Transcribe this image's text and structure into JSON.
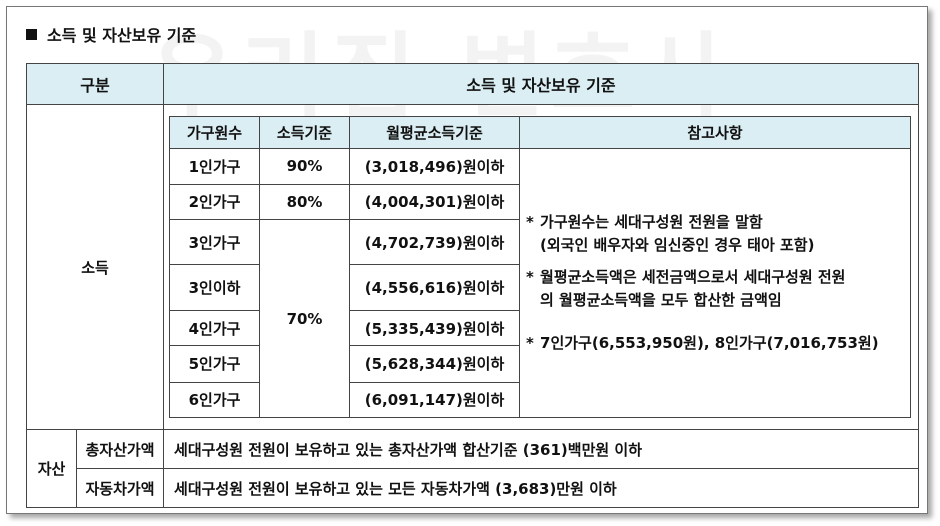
{
  "watermark": "우리집 변호사",
  "heading": "소득 및 자산보유 기준",
  "table": {
    "header": {
      "col1": "구분",
      "col2": "소득 및 자산보유 기준"
    },
    "income": {
      "label": "소득",
      "columns": [
        "가구원수",
        "소득기준",
        "월평균소득기준",
        "참고사항"
      ],
      "rows": [
        {
          "household": "1인가구",
          "rate": "90%",
          "amount": "(3,018,496)원이하"
        },
        {
          "household": "2인가구",
          "rate": "80%",
          "amount": "(4,004,301)원이하"
        },
        {
          "household": "3인가구",
          "rate": "70%",
          "amount": "(4,702,739)원이하"
        },
        {
          "household": "3인이하",
          "amount": "(4,556,616)원이하"
        },
        {
          "household": "4인가구",
          "amount": "(5,335,439)원이하"
        },
        {
          "household": "5인가구",
          "amount": "(5,628,344)원이하"
        },
        {
          "household": "6인가구",
          "amount": "(6,091,147)원이하"
        }
      ],
      "notes": {
        "star": "*",
        "n1a": "가구원수는 세대구성원 전원을 말함",
        "n1b": "(외국인 배우자와 임신중인 경우 태아 포함)",
        "n2a": "월평균소득액은 세전금액으로서 세대구성원 전원",
        "n2b": "의 월평균소득액을 모두 합산한 금액임",
        "n3": "7인가구(6,553,950원), 8인가구(7,016,753원)"
      }
    },
    "assets": {
      "label": "자산",
      "rows": [
        {
          "name": "총자산가액",
          "desc": "세대구성원 전원이 보유하고 있는 총자산가액 합산기준 (361)백만원 이하"
        },
        {
          "name": "자동차가액",
          "desc": "세대구성원 전원이 보유하고 있는 모든 자동차가액 (3,683)만원 이하"
        }
      ]
    }
  }
}
